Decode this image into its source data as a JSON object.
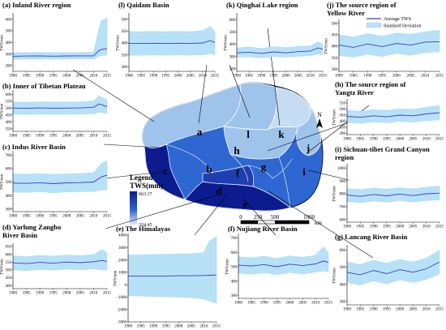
{
  "colors": {
    "sd_band": "#b7e1f7",
    "sd_edge": "#9cd3f0",
    "avg_line": "#3c3cc8",
    "map_light": "#9fc4ec",
    "map_mid": "#2f67d2",
    "map_dark": "#0c1b8e",
    "boundary": "#ffffff"
  },
  "legend": {
    "avg_label": "Average TWS",
    "sd_label": "Standard Deviation"
  },
  "map": {
    "legend_title": "Legend",
    "legend_unit": "TWS(mm)",
    "legend_max": "663.17",
    "legend_min": "324.45",
    "north": "N",
    "scale_ticks": [
      "0",
      "250",
      "500",
      "1000"
    ],
    "scale_unit": "km",
    "region_letters": [
      "a",
      "b",
      "c",
      "d",
      "e",
      "f",
      "g",
      "h",
      "i",
      "j",
      "k",
      "l"
    ]
  },
  "chart_data": [
    {
      "id": "a",
      "type": "area",
      "title": "(a) Inland River region",
      "ylabel": "TWS/mm",
      "x": [
        1980,
        1985,
        1990,
        1995,
        2000,
        2005,
        2010,
        2012,
        2013,
        2015
      ],
      "xticks": [
        "1980",
        "1985",
        "1990",
        "1995",
        "2000",
        "2005",
        "2010",
        "2015"
      ],
      "yticks": [
        "200",
        "300",
        "400",
        "500",
        "600"
      ],
      "ylim": [
        150,
        640
      ],
      "avg": [
        280,
        282,
        283,
        281,
        283,
        284,
        284,
        330,
        340,
        345
      ],
      "sd_upper": [
        310,
        312,
        313,
        311,
        313,
        314,
        314,
        520,
        590,
        610
      ],
      "sd_lower": [
        255,
        256,
        257,
        256,
        257,
        258,
        258,
        280,
        285,
        290
      ]
    },
    {
      "id": "l",
      "type": "area",
      "title": "(l) Qaidam Basin",
      "ylabel": "TWS/mm",
      "x": [
        1980,
        1985,
        1990,
        1995,
        2000,
        2005,
        2010,
        2013,
        2015
      ],
      "xticks": [
        "1980",
        "1985",
        "1990",
        "1995",
        "2000",
        "2005",
        "2010",
        "2015"
      ],
      "yticks": [
        "300",
        "350",
        "400",
        "450",
        "500"
      ],
      "ylim": [
        280,
        520
      ],
      "avg": [
        398,
        398,
        399,
        398,
        399,
        398,
        400,
        410,
        402
      ],
      "sd_upper": [
        448,
        448,
        449,
        448,
        449,
        448,
        452,
        470,
        450
      ],
      "sd_lower": [
        348,
        348,
        349,
        348,
        349,
        348,
        350,
        355,
        350
      ]
    },
    {
      "id": "k",
      "type": "area",
      "title": "(k) Qinghai Lake region",
      "ylabel": "TWS/mm",
      "x": [
        1980,
        1985,
        1990,
        1995,
        2000,
        2005,
        2010,
        2013,
        2015
      ],
      "xticks": [
        "1980",
        "1985",
        "1990",
        "1995",
        "2000",
        "2005",
        "2010",
        "2015"
      ],
      "yticks": [
        "200",
        "300",
        "400",
        "500",
        "600"
      ],
      "ylim": [
        180,
        640
      ],
      "avg": [
        330,
        335,
        325,
        338,
        330,
        340,
        345,
        370,
        360
      ],
      "sd_upper": [
        370,
        378,
        365,
        380,
        372,
        382,
        385,
        420,
        400
      ],
      "sd_lower": [
        295,
        298,
        290,
        300,
        295,
        302,
        306,
        320,
        315
      ]
    },
    {
      "id": "j",
      "type": "area",
      "title": "(j) The source region of Yellow River",
      "ylabel": "TWS/mm",
      "x": [
        1980,
        1985,
        1990,
        1995,
        2000,
        2005,
        2010,
        2015
      ],
      "xticks": [
        "1980",
        "1985",
        "1990",
        "1995",
        "2000",
        "2005",
        "2010",
        "2015"
      ],
      "yticks": [
        "300",
        "350",
        "400",
        "450",
        "500"
      ],
      "ylim": [
        290,
        510
      ],
      "avg": [
        405,
        395,
        410,
        398,
        412,
        405,
        418,
        420
      ],
      "sd_upper": [
        450,
        440,
        455,
        444,
        458,
        452,
        463,
        470
      ],
      "sd_lower": [
        360,
        352,
        365,
        355,
        368,
        360,
        372,
        375
      ]
    },
    {
      "id": "b",
      "type": "area",
      "title": "(b) Inner of Tibetan Plateau",
      "ylabel": "TWS/mm",
      "x": [
        1980,
        1985,
        1990,
        1995,
        2000,
        2005,
        2010,
        2012,
        2015
      ],
      "xticks": [
        "1980",
        "1985",
        "1990",
        "1995",
        "2000",
        "2005",
        "2010",
        "2015"
      ],
      "yticks": [
        "350",
        "400",
        "450",
        "500",
        "550",
        "600"
      ],
      "ylim": [
        330,
        620
      ],
      "avg": [
        500,
        498,
        501,
        499,
        500,
        501,
        505,
        530,
        510
      ],
      "sd_upper": [
        545,
        543,
        546,
        544,
        545,
        546,
        552,
        590,
        560
      ],
      "sd_lower": [
        455,
        453,
        456,
        454,
        455,
        456,
        458,
        470,
        460
      ]
    },
    {
      "id": "h",
      "type": "area",
      "title": "(h) The source region of Yangtz River",
      "ylabel": "TWS/mm",
      "x": [
        1980,
        1985,
        1990,
        1995,
        2000,
        2005,
        2010,
        2015
      ],
      "xticks": [
        "1980",
        "1985",
        "1990",
        "1995",
        "2000",
        "2005",
        "2010",
        "2015"
      ],
      "yticks": [
        "300",
        "350",
        "400",
        "450",
        "500",
        "550"
      ],
      "ylim": [
        290,
        570
      ],
      "avg": [
        440,
        432,
        445,
        436,
        450,
        445,
        460,
        470
      ],
      "sd_upper": [
        490,
        482,
        495,
        488,
        502,
        498,
        515,
        530
      ],
      "sd_lower": [
        390,
        382,
        395,
        386,
        400,
        392,
        405,
        410
      ]
    },
    {
      "id": "c",
      "type": "area",
      "title": "(c) Indus River Basin",
      "ylabel": "TWS/mm",
      "x": [
        1980,
        1985,
        1990,
        1995,
        2000,
        2005,
        2010,
        2013,
        2015
      ],
      "xticks": [
        "1980",
        "1985",
        "1990",
        "1995",
        "2000",
        "2005",
        "2010",
        "2015"
      ],
      "yticks": [
        "300",
        "400",
        "500",
        "600",
        "700"
      ],
      "ylim": [
        280,
        720
      ],
      "avg": [
        492,
        490,
        495,
        488,
        494,
        496,
        500,
        540,
        550
      ],
      "sd_upper": [
        560,
        558,
        562,
        556,
        561,
        563,
        570,
        640,
        660
      ],
      "sd_lower": [
        425,
        422,
        428,
        420,
        426,
        428,
        430,
        440,
        445
      ]
    },
    {
      "id": "i",
      "type": "area",
      "title": "(i) Sichuan-tibet Grand Canyon region",
      "ylabel": "TWS/mm",
      "x": [
        1980,
        1985,
        1990,
        1995,
        2000,
        2005,
        2010,
        2015
      ],
      "xticks": [
        "1980",
        "1985",
        "1990",
        "1995",
        "2000",
        "2005",
        "2010",
        "2015"
      ],
      "yticks": [
        "600",
        "700",
        "800",
        "900",
        "1000"
      ],
      "ylim": [
        580,
        1020
      ],
      "avg": [
        790,
        780,
        795,
        784,
        798,
        786,
        800,
        805
      ],
      "sd_upper": [
        840,
        832,
        845,
        836,
        848,
        838,
        852,
        860
      ],
      "sd_lower": [
        740,
        730,
        745,
        734,
        748,
        736,
        748,
        752
      ]
    },
    {
      "id": "d",
      "type": "area",
      "title": "(d) Yarlung Zangbo River Basin",
      "ylabel": "TWS/mm",
      "x": [
        1980,
        1985,
        1990,
        1995,
        2000,
        2005,
        2010,
        2013,
        2015
      ],
      "xticks": [
        "1980",
        "1985",
        "1990",
        "1995",
        "2000",
        "2005",
        "2010",
        "2015"
      ],
      "yticks": [
        "400",
        "450",
        "500",
        "550",
        "600",
        "650"
      ],
      "ylim": [
        380,
        660
      ],
      "avg": [
        545,
        540,
        548,
        543,
        550,
        546,
        552,
        560,
        555
      ],
      "sd_upper": [
        590,
        585,
        593,
        588,
        595,
        591,
        598,
        630,
        610
      ],
      "sd_lower": [
        500,
        495,
        503,
        498,
        505,
        501,
        506,
        500,
        500
      ]
    },
    {
      "id": "e",
      "type": "area",
      "title": "(e) The Himalayas",
      "ylabel": "TWS/mm",
      "x": [
        1980,
        1985,
        1990,
        1995,
        2000,
        2005,
        2010,
        2012,
        2015
      ],
      "xticks": [
        "1980",
        "1985",
        "1990",
        "1995",
        "2000",
        "2005",
        "2010",
        "2015"
      ],
      "yticks": [
        "-3000",
        "-2000",
        "-1000",
        "0",
        "1000",
        "2000",
        "3000",
        "4000"
      ],
      "ylim": [
        -3000,
        4000
      ],
      "avg": [
        700,
        700,
        700,
        700,
        720,
        720,
        740,
        760,
        780
      ],
      "sd_upper": [
        2400,
        2400,
        2450,
        2450,
        2500,
        2500,
        2600,
        3500,
        3900
      ],
      "sd_lower": [
        -900,
        -920,
        -950,
        -980,
        -1000,
        -1050,
        -1150,
        -1300,
        -1500
      ]
    },
    {
      "id": "f",
      "type": "area",
      "title": "(f) Nujiang River Basin",
      "ylabel": "TWS/mm",
      "x": [
        1980,
        1985,
        1990,
        1995,
        2000,
        2005,
        2010,
        2013,
        2015
      ],
      "xticks": [
        "1980",
        "1985",
        "1990",
        "1995",
        "2000",
        "2005",
        "2010",
        "2015"
      ],
      "yticks": [
        "300",
        "400",
        "500",
        "600",
        "700"
      ],
      "ylim": [
        280,
        720
      ],
      "avg": [
        512,
        505,
        515,
        500,
        518,
        508,
        520,
        540,
        530
      ],
      "sd_upper": [
        570,
        562,
        574,
        558,
        576,
        566,
        580,
        640,
        600
      ],
      "sd_lower": [
        455,
        448,
        458,
        444,
        460,
        450,
        462,
        470,
        465
      ]
    },
    {
      "id": "g",
      "type": "area",
      "title": "(g) Lancang River Basin",
      "ylabel": "TWS/mm",
      "x": [
        1980,
        1985,
        1990,
        1995,
        2000,
        2005,
        2010,
        2015
      ],
      "xticks": [
        "1980",
        "1985",
        "1990",
        "1995",
        "2000",
        "2005",
        "2010",
        "2015"
      ],
      "yticks": [
        "300",
        "400",
        "500",
        "600"
      ],
      "ylim": [
        280,
        620
      ],
      "avg": [
        470,
        455,
        480,
        462,
        485,
        470,
        490,
        530
      ],
      "sd_upper": [
        530,
        515,
        540,
        522,
        545,
        530,
        552,
        600
      ],
      "sd_lower": [
        410,
        395,
        420,
        402,
        425,
        410,
        428,
        460
      ]
    }
  ]
}
